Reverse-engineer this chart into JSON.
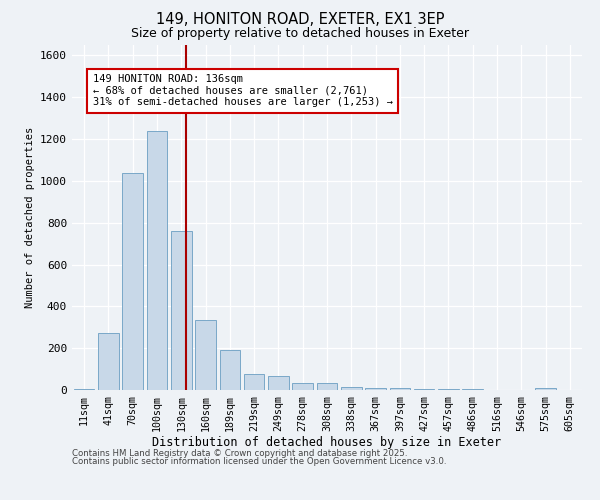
{
  "title1": "149, HONITON ROAD, EXETER, EX1 3EP",
  "title2": "Size of property relative to detached houses in Exeter",
  "xlabel": "Distribution of detached houses by size in Exeter",
  "ylabel": "Number of detached properties",
  "bar_labels": [
    "11sqm",
    "41sqm",
    "70sqm",
    "100sqm",
    "130sqm",
    "160sqm",
    "189sqm",
    "219sqm",
    "249sqm",
    "278sqm",
    "308sqm",
    "338sqm",
    "367sqm",
    "397sqm",
    "427sqm",
    "457sqm",
    "486sqm",
    "516sqm",
    "546sqm",
    "575sqm",
    "605sqm"
  ],
  "bar_values": [
    5,
    275,
    1040,
    1240,
    760,
    335,
    190,
    75,
    65,
    35,
    35,
    15,
    10,
    10,
    5,
    3,
    3,
    0,
    0,
    8,
    0
  ],
  "bar_color": "#c8d8e8",
  "bar_edgecolor": "#7aa8c8",
  "annotation_line1": "149 HONITON ROAD: 136sqm",
  "annotation_line2": "← 68% of detached houses are smaller (2,761)",
  "annotation_line3": "31% of semi-detached houses are larger (1,253) →",
  "vline_x": 4.2,
  "vline_color": "#aa0000",
  "annotation_box_edgecolor": "#cc0000",
  "annotation_box_facecolor": "#ffffff",
  "ylim": [
    0,
    1650
  ],
  "yticks": [
    0,
    200,
    400,
    600,
    800,
    1000,
    1200,
    1400,
    1600
  ],
  "footer1": "Contains HM Land Registry data © Crown copyright and database right 2025.",
  "footer2": "Contains public sector information licensed under the Open Government Licence v3.0.",
  "bg_color": "#eef2f6"
}
